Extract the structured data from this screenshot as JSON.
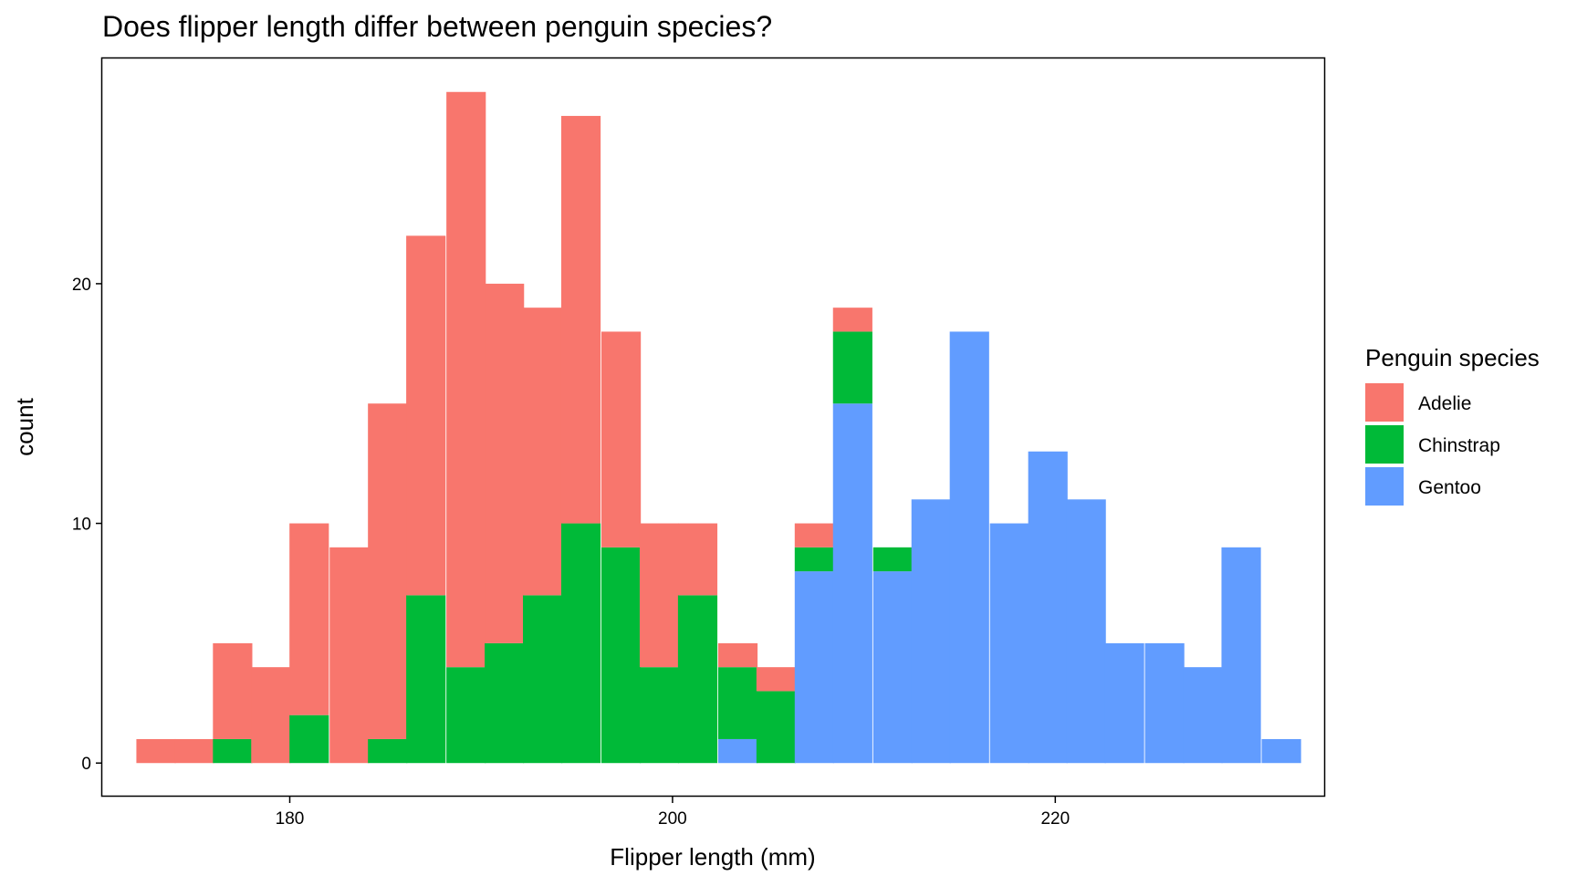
{
  "chart_data": {
    "type": "bar",
    "subtype": "stacked-histogram",
    "title": "Does flipper length differ between penguin species?",
    "xlabel": "Flipper length (mm)",
    "ylabel": "count",
    "xlim": [
      170.2,
      234.1
    ],
    "ylim": [
      -1.4,
      29.4
    ],
    "x_ticks": [
      180,
      200,
      220
    ],
    "x_tick_labels": [
      "180",
      "200",
      "220"
    ],
    "y_ticks": [
      0,
      10,
      20
    ],
    "y_tick_labels": [
      "0",
      "10",
      "20"
    ],
    "grid": false,
    "legend": {
      "title": "Penguin species",
      "position": "right"
    },
    "bin_width": 2.03,
    "x": [
      173.0,
      175.0,
      177.0,
      179.0,
      181.0,
      183.1,
      185.1,
      187.1,
      189.2,
      191.2,
      193.2,
      195.2,
      197.3,
      199.3,
      201.3,
      203.4,
      205.4,
      207.4,
      209.4,
      211.5,
      213.5,
      215.5,
      217.6,
      219.6,
      221.6,
      223.6,
      225.7,
      227.7,
      229.7,
      231.8
    ],
    "series": [
      {
        "name": "Adelie",
        "color": "#F8766D",
        "values": [
          1,
          1,
          4,
          4,
          8,
          9,
          14,
          15,
          24,
          15,
          12,
          17,
          9,
          6,
          3,
          1,
          1,
          1,
          1,
          0,
          0,
          0,
          0,
          0,
          0,
          0,
          0,
          0,
          0,
          0
        ]
      },
      {
        "name": "Chinstrap",
        "color": "#00BA38",
        "values": [
          0,
          0,
          1,
          0,
          2,
          0,
          1,
          7,
          4,
          5,
          7,
          10,
          9,
          4,
          7,
          3,
          3,
          1,
          3,
          1,
          0,
          0,
          0,
          0,
          0,
          0,
          0,
          0,
          0,
          0
        ]
      },
      {
        "name": "Gentoo",
        "color": "#619CFF",
        "values": [
          0,
          0,
          0,
          0,
          0,
          0,
          0,
          0,
          0,
          0,
          0,
          0,
          0,
          0,
          0,
          1,
          0,
          8,
          15,
          8,
          11,
          18,
          10,
          13,
          11,
          5,
          5,
          4,
          9,
          1
        ]
      }
    ]
  }
}
